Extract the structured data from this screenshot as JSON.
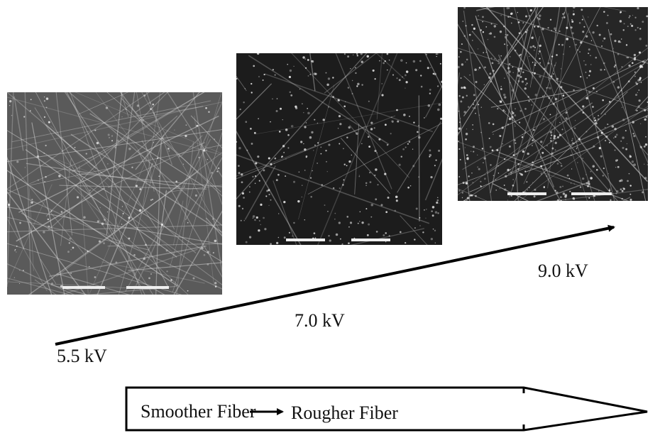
{
  "labels": {
    "low": "5.5 kV",
    "mid": "7.0 kV",
    "high": "9.0 kV"
  },
  "legend": {
    "from": "Smoother Fiber",
    "to": "Rougher Fiber"
  }
}
